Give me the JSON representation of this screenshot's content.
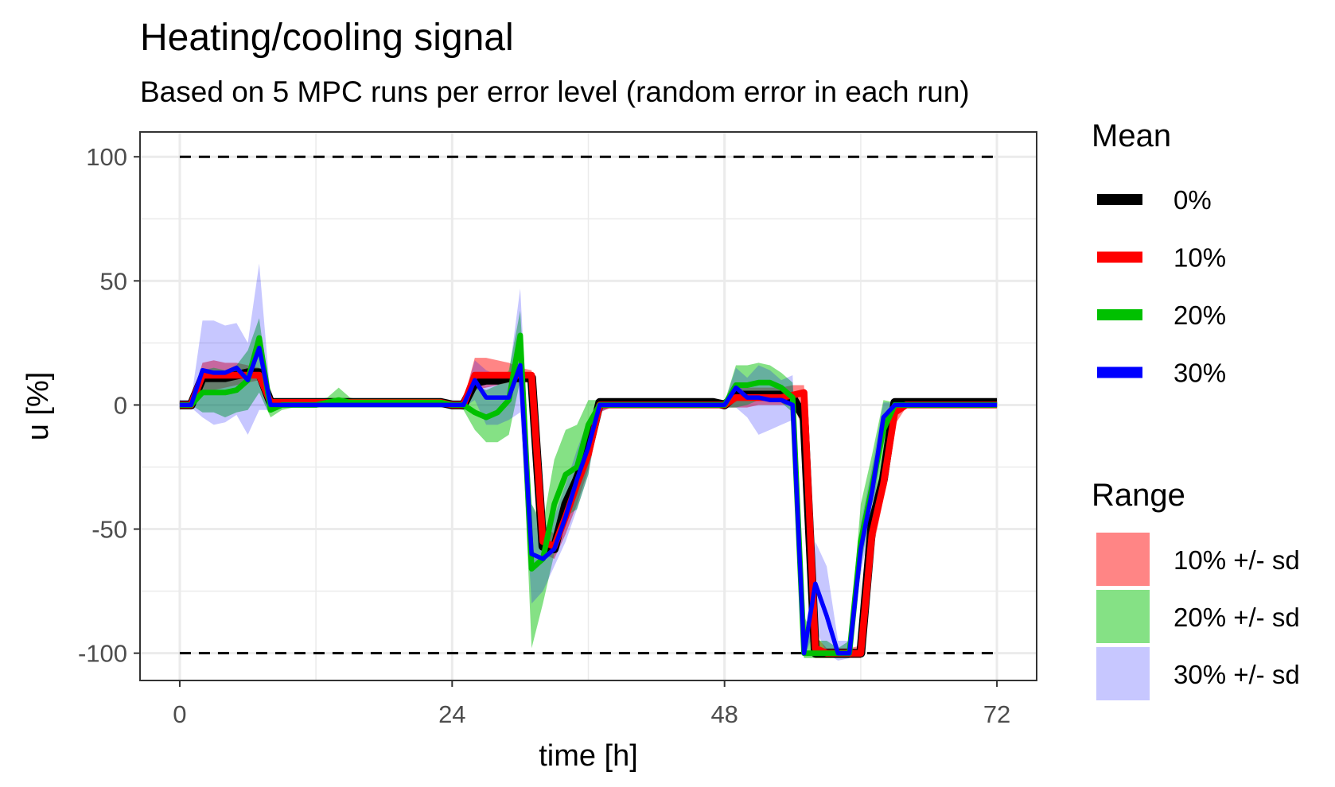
{
  "chart_data": {
    "type": "line",
    "title": "Heating/cooling signal",
    "subtitle": "Based on 5 MPC runs per error level (random error in each run)",
    "xlabel": "time [h]",
    "ylabel": "u [%]",
    "xlim": [
      -3.5,
      75.5
    ],
    "ylim": [
      -111,
      110
    ],
    "xticks": [
      0,
      24,
      48,
      72
    ],
    "yticks": [
      100,
      50,
      0,
      -50,
      -100
    ],
    "x_tick_labels": [
      "0",
      "24",
      "48",
      "72"
    ],
    "y_tick_labels": [
      "100",
      "50",
      "0",
      "-50",
      "-100"
    ],
    "grid": true,
    "reference_lines": [
      100,
      -100
    ],
    "legend_placement": "right",
    "x": [
      0,
      1,
      2,
      3,
      4,
      5,
      6,
      7,
      8,
      9,
      10,
      11,
      12,
      13,
      14,
      15,
      16,
      17,
      18,
      19,
      20,
      21,
      22,
      23,
      24,
      25,
      26,
      27,
      28,
      29,
      30,
      31,
      32,
      33,
      34,
      35,
      36,
      37,
      38,
      39,
      40,
      41,
      42,
      43,
      44,
      45,
      46,
      47,
      48,
      49,
      50,
      51,
      52,
      53,
      54,
      55,
      56,
      57,
      58,
      59,
      60,
      61,
      62,
      63,
      64,
      65,
      66,
      67,
      68,
      69,
      70,
      71,
      72
    ],
    "series": [
      {
        "name": "0%",
        "color": "#000000",
        "values": [
          0,
          0,
          11,
          11,
          11,
          12,
          13,
          13,
          1,
          1,
          1,
          1,
          1,
          1,
          1,
          1,
          1,
          1,
          1,
          1,
          1,
          1,
          1,
          1,
          0,
          0,
          9,
          10,
          10,
          11,
          11,
          11,
          -57,
          -58,
          -40,
          -30,
          -18,
          1,
          1,
          1,
          1,
          1,
          1,
          1,
          1,
          1,
          1,
          1,
          0,
          4,
          4,
          4,
          4,
          4,
          3,
          -5,
          -100,
          -100,
          -100,
          -100,
          -100,
          -48,
          -30,
          1,
          1,
          1,
          1,
          1,
          1,
          1,
          1,
          1,
          1
        ]
      },
      {
        "name": "10%",
        "color": "#ff0000",
        "values": [
          0,
          0,
          12,
          12,
          12,
          12,
          12,
          12,
          1,
          1,
          1,
          1,
          1,
          1,
          1,
          1,
          1,
          1,
          1,
          1,
          1,
          1,
          1,
          1,
          0,
          0,
          12,
          12,
          12,
          12,
          12,
          12,
          -55,
          -57,
          -45,
          -32,
          -20,
          0,
          0,
          0,
          0,
          0,
          0,
          0,
          0,
          0,
          0,
          0,
          0,
          3,
          3,
          3,
          3,
          3,
          4,
          5,
          -98,
          -100,
          -100,
          -100,
          -100,
          -52,
          -32,
          -3,
          0,
          0,
          0,
          0,
          0,
          0,
          0,
          0,
          0
        ]
      },
      {
        "name": "20%",
        "color": "#00c000",
        "values": [
          0,
          0,
          5,
          5,
          5,
          6,
          10,
          27,
          -2,
          0,
          0,
          0,
          0,
          1,
          2,
          1,
          1,
          1,
          1,
          1,
          1,
          1,
          1,
          1,
          0,
          0,
          -3,
          -5,
          -3,
          2,
          28,
          -66,
          -62,
          -40,
          -28,
          -25,
          -8,
          0,
          0,
          0,
          0,
          0,
          0,
          0,
          0,
          0,
          0,
          0,
          0,
          8,
          8,
          9,
          9,
          7,
          3,
          -100,
          -100,
          -100,
          -100,
          -100,
          -55,
          -33,
          -10,
          0,
          0,
          0,
          0,
          0,
          0,
          0,
          0,
          0,
          0
        ]
      },
      {
        "name": "30%",
        "color": "#0000ff",
        "values": [
          0,
          0,
          14,
          13,
          13,
          15,
          10,
          23,
          0,
          0,
          0,
          0,
          0,
          0,
          0,
          0,
          0,
          0,
          0,
          0,
          0,
          0,
          0,
          0,
          0,
          0,
          10,
          3,
          3,
          3,
          16,
          -60,
          -62,
          -58,
          -45,
          -30,
          -17,
          0,
          0,
          0,
          0,
          0,
          0,
          0,
          0,
          0,
          0,
          0,
          0,
          7,
          3,
          3,
          2,
          2,
          0,
          -100,
          -72,
          -85,
          -100,
          -100,
          -58,
          -35,
          -5,
          0,
          0,
          0,
          0,
          0,
          0,
          0,
          0,
          0,
          0
        ]
      }
    ],
    "ranges": [
      {
        "name": "10% +/- sd",
        "color": "#ff0000",
        "opacity": 0.48,
        "lower": [
          0,
          0,
          5,
          6,
          7,
          8,
          9,
          10,
          -1,
          0,
          0,
          0,
          0,
          0,
          0,
          0,
          0,
          0,
          0,
          0,
          0,
          0,
          0,
          0,
          -1,
          -1,
          6,
          7,
          8,
          9,
          9,
          9,
          -60,
          -62,
          -52,
          -40,
          -26,
          -3,
          -1,
          -1,
          -1,
          -1,
          -1,
          -1,
          -1,
          -1,
          -1,
          -1,
          -1,
          -1,
          -1,
          0,
          0,
          0,
          0,
          -10,
          -102,
          -102,
          -102,
          -102,
          -102,
          -60,
          -38,
          -8,
          -1,
          -1,
          -1,
          -1,
          -1,
          -1,
          -1,
          -1,
          -1
        ],
        "upper": [
          1,
          1,
          17,
          18,
          17,
          17,
          16,
          15,
          2,
          2,
          2,
          2,
          2,
          2,
          2,
          2,
          2,
          2,
          2,
          2,
          2,
          2,
          2,
          2,
          1,
          2,
          19,
          19,
          18,
          17,
          15,
          14,
          -48,
          -52,
          -38,
          -24,
          -14,
          2,
          1,
          1,
          1,
          1,
          1,
          1,
          1,
          1,
          1,
          1,
          1,
          7,
          7,
          7,
          7,
          7,
          8,
          8,
          -93,
          -98,
          -98,
          -98,
          -97,
          -45,
          -26,
          1,
          1,
          1,
          1,
          1,
          1,
          1,
          1,
          1,
          1
        ]
      },
      {
        "name": "20% +/- sd",
        "color": "#00c000",
        "opacity": 0.48,
        "lower": [
          0,
          0,
          -3,
          -3,
          -5,
          -3,
          -2,
          5,
          -5,
          -2,
          -1,
          -1,
          -1,
          -1,
          -1,
          -1,
          -1,
          -1,
          -1,
          -1,
          -1,
          -1,
          -1,
          -1,
          -1,
          -2,
          -10,
          -15,
          -15,
          -12,
          10,
          -98,
          -80,
          -60,
          -45,
          -42,
          -28,
          -2,
          -1,
          -1,
          -1,
          -1,
          -1,
          -1,
          -1,
          -1,
          -1,
          -1,
          -1,
          -1,
          0,
          2,
          2,
          1,
          -3,
          -102,
          -102,
          -102,
          -102,
          -102,
          -65,
          -40,
          -25,
          -2,
          -1,
          -1,
          -1,
          -1,
          -1,
          -1,
          -1,
          -1,
          -1
        ],
        "upper": [
          1,
          1,
          14,
          15,
          14,
          16,
          22,
          35,
          1,
          1,
          1,
          1,
          2,
          3,
          7,
          3,
          2,
          2,
          2,
          2,
          2,
          2,
          2,
          2,
          1,
          2,
          8,
          6,
          8,
          14,
          38,
          -40,
          -48,
          -22,
          -10,
          -8,
          2,
          2,
          1,
          1,
          1,
          1,
          1,
          1,
          1,
          1,
          1,
          1,
          1,
          16,
          16,
          17,
          16,
          13,
          9,
          -85,
          -95,
          -95,
          -98,
          -95,
          -40,
          -20,
          2,
          1,
          1,
          1,
          1,
          1,
          1,
          1,
          1,
          1,
          1
        ]
      },
      {
        "name": "30% +/- sd",
        "color": "#0000ff",
        "opacity": 0.22,
        "lower": [
          -1,
          -1,
          -5,
          -8,
          -7,
          -4,
          -12,
          -2,
          -2,
          -1,
          -1,
          -1,
          -1,
          -1,
          -1,
          -1,
          -1,
          -1,
          -1,
          -1,
          -1,
          -1,
          -1,
          -1,
          -1,
          -1,
          2,
          -8,
          -8,
          -6,
          -3,
          -80,
          -75,
          -65,
          -55,
          -42,
          -28,
          -3,
          -1,
          -1,
          -1,
          -1,
          -1,
          -1,
          -1,
          -1,
          -1,
          -1,
          -1,
          -1,
          -5,
          -12,
          -10,
          -8,
          -6,
          -102,
          -90,
          -100,
          -103,
          -102,
          -68,
          -45,
          -12,
          -1,
          -1,
          -1,
          -1,
          -1,
          -1,
          -1,
          -1,
          -1,
          -1
        ],
        "upper": [
          2,
          2,
          34,
          34,
          32,
          33,
          25,
          57,
          3,
          2,
          2,
          2,
          2,
          2,
          2,
          2,
          2,
          2,
          2,
          2,
          2,
          2,
          2,
          2,
          1,
          2,
          18,
          14,
          12,
          12,
          47,
          -40,
          -50,
          -45,
          -32,
          -18,
          -6,
          2,
          1,
          1,
          1,
          1,
          1,
          1,
          1,
          1,
          1,
          1,
          1,
          15,
          11,
          16,
          14,
          10,
          12,
          -98,
          -55,
          -65,
          -95,
          -95,
          -48,
          -25,
          1,
          1,
          1,
          1,
          1,
          1,
          1,
          1,
          1,
          1,
          1
        ]
      }
    ],
    "legends": {
      "mean_title": "Mean",
      "range_title": "Range"
    }
  }
}
